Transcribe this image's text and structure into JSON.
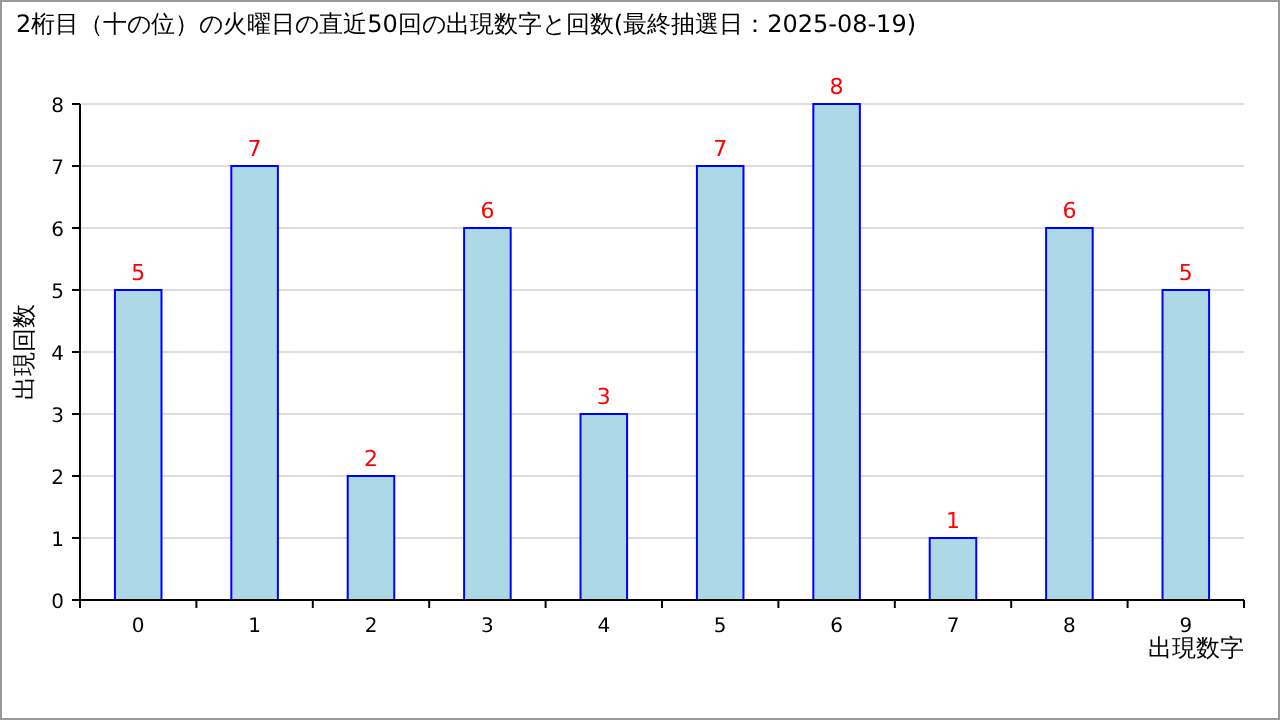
{
  "chart_data": {
    "type": "bar",
    "title": "2桁目（十の位）の火曜日の直近50回の出現数字と回数(最終抽選日：2025-08-19)",
    "xlabel": "出現数字",
    "ylabel": "出現回数",
    "categories": [
      "0",
      "1",
      "2",
      "3",
      "4",
      "5",
      "6",
      "7",
      "8",
      "9"
    ],
    "values": [
      5,
      7,
      2,
      6,
      3,
      7,
      8,
      1,
      6,
      5
    ],
    "color": "#add8e6",
    "ylim": [
      0,
      8
    ],
    "yticks": [
      0,
      1,
      2,
      3,
      4,
      5,
      6,
      7,
      8
    ],
    "grid": "y",
    "data_labels": true
  }
}
